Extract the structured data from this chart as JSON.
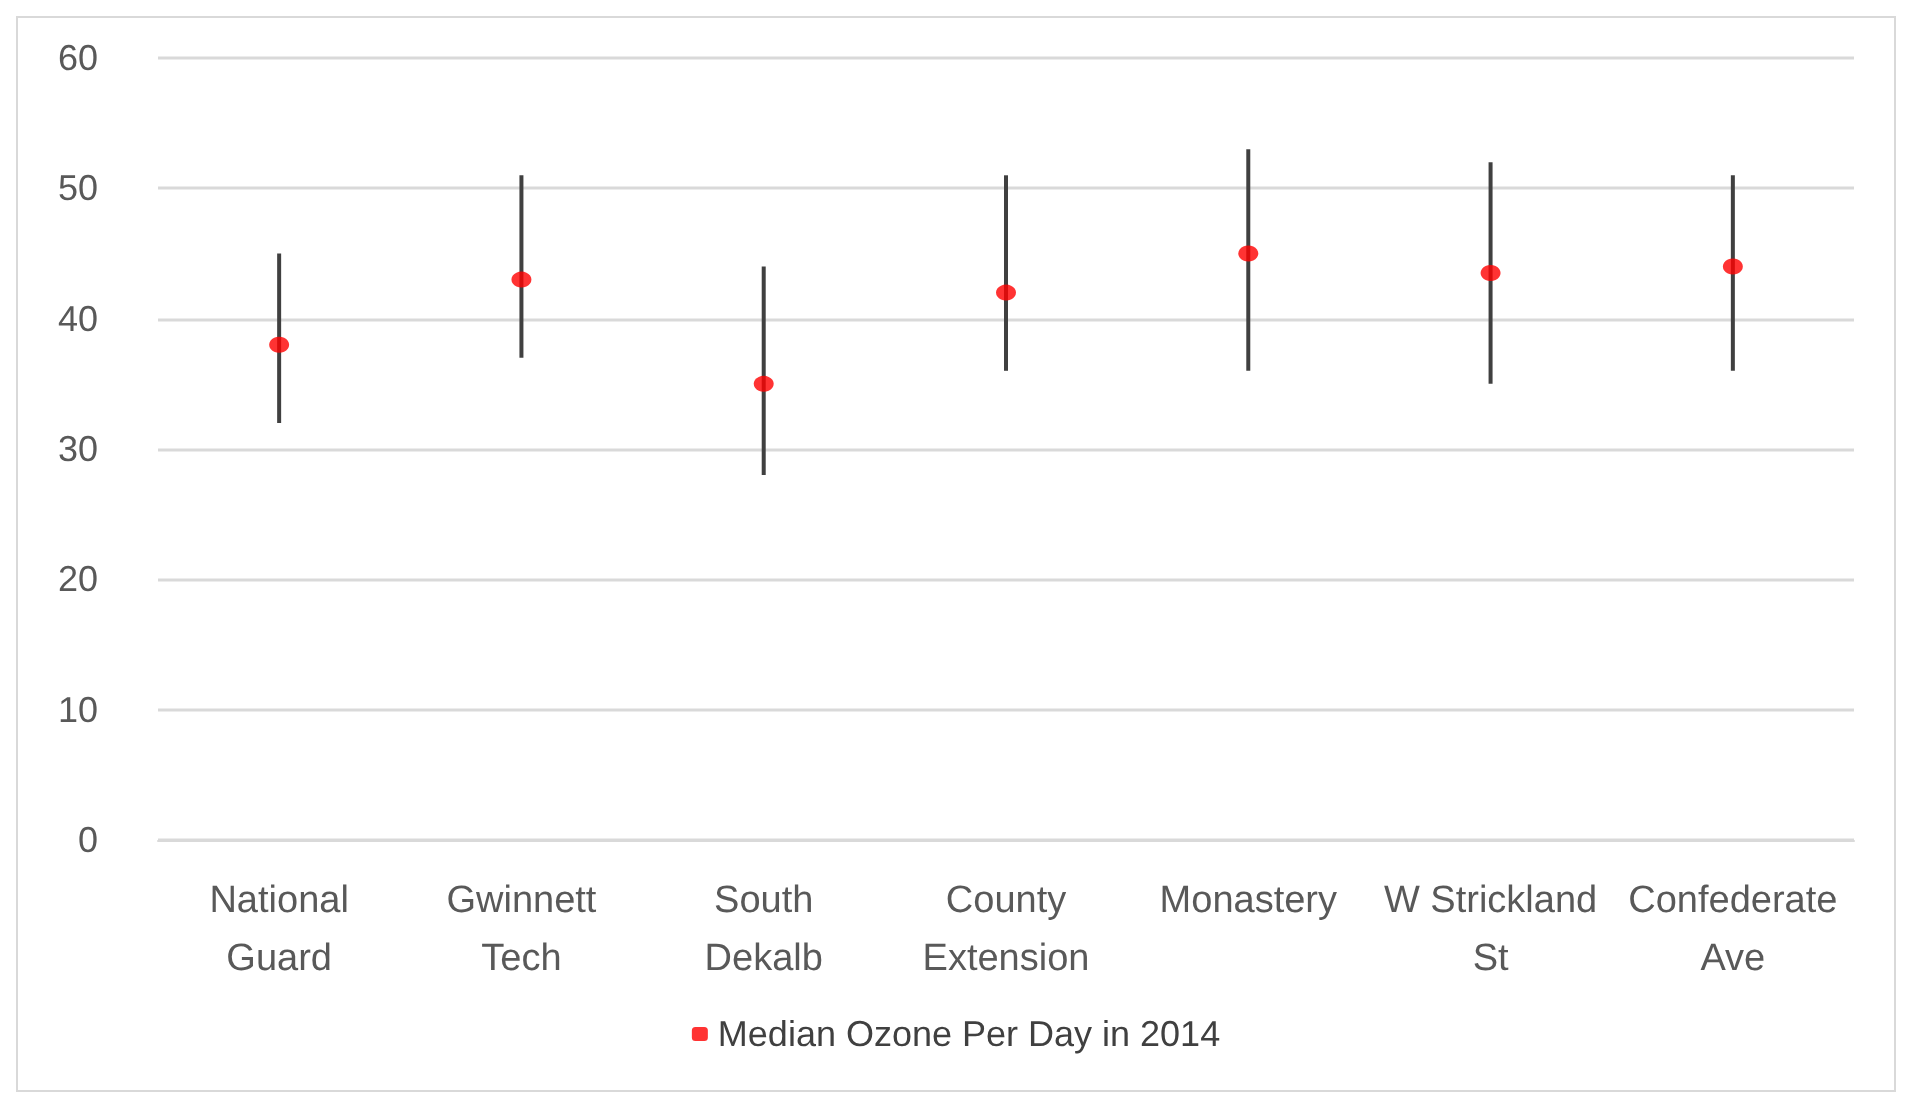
{
  "chart_data": {
    "type": "scatter",
    "categories": [
      "National\nGuard",
      "Gwinnett\nTech",
      "South\nDekalb",
      "County\nExtension",
      "Monastery",
      "W Strickland\nSt",
      "Confederate\nAve"
    ],
    "series": [
      {
        "name": "Median Ozone Per Day in 2014",
        "color": "#ff0000",
        "values": [
          38,
          43,
          35,
          42,
          45,
          43.5,
          44
        ],
        "errors": [
          [
            32,
            45
          ],
          [
            37,
            51
          ],
          [
            28,
            44
          ],
          [
            36,
            51
          ],
          [
            36,
            53
          ],
          [
            35,
            52
          ],
          [
            36,
            51
          ]
        ]
      }
    ],
    "ylim": [
      0,
      60
    ],
    "yticks": [
      0,
      10,
      20,
      30,
      40,
      50,
      60
    ],
    "grid": "y",
    "legend": "bottom",
    "marker": "circle"
  }
}
